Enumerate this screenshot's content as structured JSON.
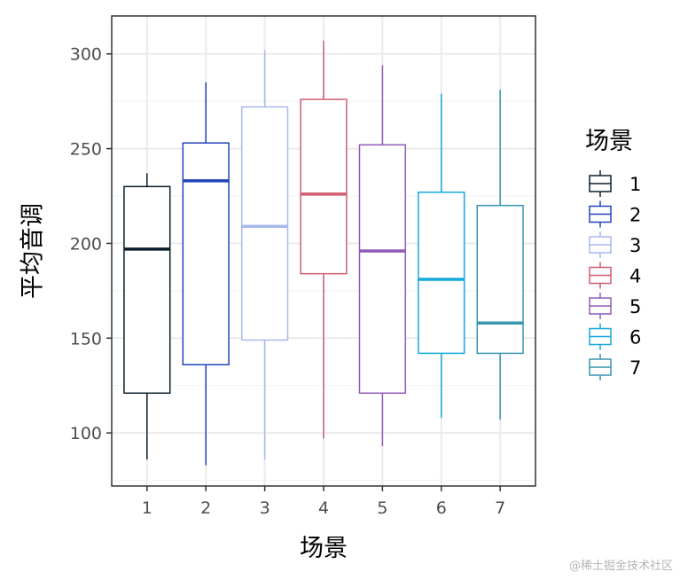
{
  "chart_data": {
    "type": "box",
    "xlabel": "场景",
    "ylabel": "平均音调",
    "ylim": [
      72,
      320
    ],
    "y_ticks": [
      100,
      150,
      200,
      250,
      300
    ],
    "grid": true,
    "legend": {
      "title": "场景",
      "position": "right"
    },
    "categories": [
      "1",
      "2",
      "3",
      "4",
      "5",
      "6",
      "7"
    ],
    "boxes": [
      {
        "name": "1",
        "color": "#0b1f2c",
        "min": 86,
        "q1": 121,
        "median": 197,
        "q3": 230,
        "max": 237
      },
      {
        "name": "2",
        "color": "#2244b8",
        "min": 83,
        "q1": 136,
        "median": 233,
        "q3": 253,
        "max": 285
      },
      {
        "name": "3",
        "color": "#a9b9ef",
        "min": 86,
        "q1": 149,
        "median": 209,
        "q3": 272,
        "max": 302
      },
      {
        "name": "4",
        "color": "#d05d70",
        "min": 97,
        "q1": 184,
        "median": 226,
        "q3": 276,
        "max": 307
      },
      {
        "name": "5",
        "color": "#8f5cb6",
        "min": 93,
        "q1": 121,
        "median": 196,
        "q3": 252,
        "max": 294
      },
      {
        "name": "6",
        "color": "#14a8dc",
        "min": 108,
        "q1": 142,
        "median": 181,
        "q3": 227,
        "max": 279
      },
      {
        "name": "7",
        "color": "#3896ae",
        "min": 107,
        "q1": 142,
        "median": 158,
        "q3": 220,
        "max": 281
      }
    ]
  },
  "watermark": "@稀土掘金技术社区"
}
